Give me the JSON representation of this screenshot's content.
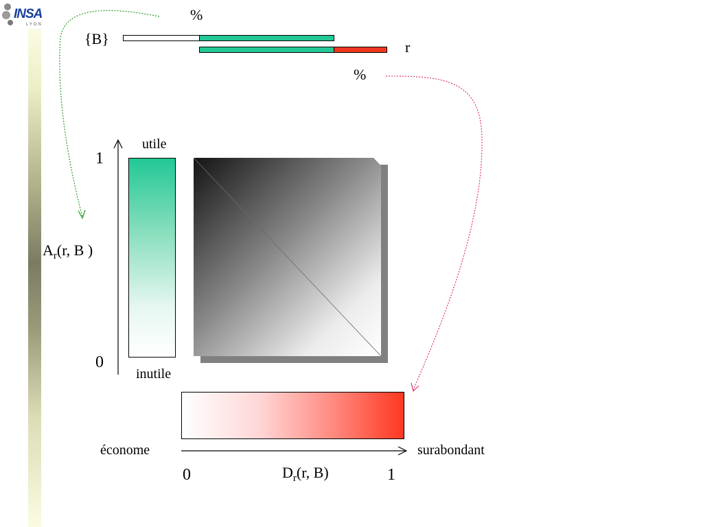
{
  "logo": {
    "text": "INSA",
    "subtext": "LYON"
  },
  "top_diagram": {
    "set_label": "{B}",
    "r_label": "r",
    "percent_top": "%",
    "percent_bottom": "%"
  },
  "vertical_axis": {
    "label_top": "utile",
    "label_bottom": "inutile",
    "tick_max": "1",
    "tick_min": "0",
    "measure_main": "A",
    "measure_sub": "r",
    "measure_args": "(r, B )"
  },
  "horizontal_axis": {
    "label_left": "économe",
    "label_right": "surabondant",
    "tick_min": "0",
    "tick_max": "1",
    "measure_main": "D",
    "measure_sub": "r",
    "measure_args": "(r, B)"
  },
  "colors": {
    "green": "#22c896",
    "red": "#f03820",
    "green_arrow": "#2a9a2a",
    "pink_arrow": "#e0306a"
  }
}
